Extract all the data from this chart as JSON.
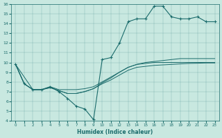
{
  "xlabel": "Humidex (Indice chaleur)",
  "bg_color": "#c8e8e0",
  "line_color": "#1a6b6b",
  "xlim": [
    -0.5,
    23.5
  ],
  "ylim": [
    4,
    16
  ],
  "xticks": [
    0,
    1,
    2,
    3,
    4,
    5,
    6,
    7,
    8,
    9,
    10,
    11,
    12,
    13,
    14,
    15,
    16,
    17,
    18,
    19,
    20,
    21,
    22,
    23
  ],
  "yticks": [
    4,
    5,
    6,
    7,
    8,
    9,
    10,
    11,
    12,
    13,
    14,
    15,
    16
  ],
  "line_main_x": [
    0,
    1,
    2,
    3,
    4,
    5,
    6,
    7,
    8,
    9,
    10,
    11,
    12,
    13,
    14,
    15,
    16,
    17,
    18,
    19,
    20,
    21,
    22,
    23
  ],
  "line_main_y": [
    9.8,
    7.8,
    7.2,
    7.2,
    7.5,
    7.0,
    6.3,
    5.5,
    5.2,
    4.1,
    10.3,
    10.5,
    12.0,
    14.2,
    14.5,
    14.5,
    15.8,
    15.8,
    14.7,
    14.5,
    14.5,
    14.7,
    14.2,
    14.2
  ],
  "line2_x": [
    0,
    1,
    2,
    3,
    4,
    5,
    6,
    7,
    8,
    9,
    10,
    11,
    12,
    13,
    14,
    15,
    16,
    17,
    18,
    19,
    20,
    21,
    22,
    23
  ],
  "line2_y": [
    9.8,
    7.8,
    7.2,
    7.2,
    7.4,
    7.1,
    6.8,
    6.8,
    7.0,
    7.3,
    7.8,
    8.2,
    8.7,
    9.2,
    9.5,
    9.6,
    9.7,
    9.75,
    9.8,
    9.85,
    9.9,
    9.92,
    9.95,
    9.95
  ],
  "line3_x": [
    0,
    1,
    2,
    3,
    4,
    5,
    6,
    7,
    8,
    9,
    10,
    11,
    12,
    13,
    14,
    15,
    16,
    17,
    18,
    19,
    20,
    21,
    22,
    23
  ],
  "line3_y": [
    9.8,
    7.8,
    7.2,
    7.2,
    7.4,
    7.1,
    6.8,
    6.8,
    7.0,
    7.3,
    7.9,
    8.4,
    9.0,
    9.5,
    9.8,
    9.9,
    10.0,
    10.0,
    10.0,
    10.0,
    10.0,
    10.0,
    10.0,
    10.0
  ],
  "line4_x": [
    0,
    2,
    3,
    4,
    5,
    6,
    7,
    8,
    9,
    10,
    11,
    12,
    13,
    14,
    15,
    16,
    17,
    18,
    19,
    20,
    21,
    22,
    23
  ],
  "line4_y": [
    9.8,
    7.2,
    7.2,
    7.5,
    7.2,
    7.2,
    7.2,
    7.3,
    7.5,
    8.0,
    8.5,
    9.0,
    9.5,
    9.8,
    10.0,
    10.1,
    10.2,
    10.3,
    10.4,
    10.4,
    10.4,
    10.4,
    10.4
  ]
}
